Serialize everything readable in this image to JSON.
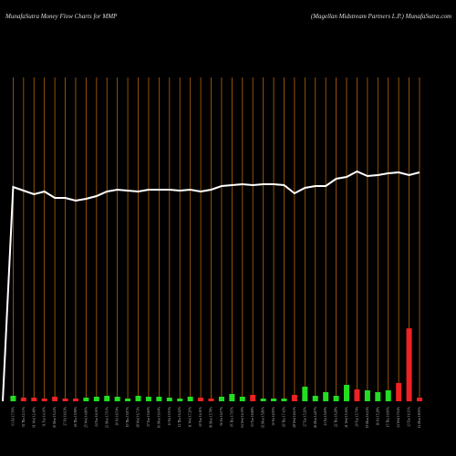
{
  "chart_data": {
    "type": "money-flow",
    "title": "MunafaSutra  Money Flow  Charts for MMP",
    "subtitle": "(Magellan Midstream Partners L.P.) MunafaSutra.com",
    "categories": [
      null,
      "03 Fri 17.59%",
      "02 Thu 12.33%",
      "01 Wed 12.48%",
      "31 Tue 14.30%",
      "30 Mon 15.41%",
      "27 Fri 16.02%",
      "26 Thu 15.98%",
      "25 Wed 14.80%",
      "24 Tue 16.30%",
      "23 Mon 17.03%",
      "20 Fri 16.54%",
      "19 Thu 15.87%",
      "18 Wed 16.71%",
      "17 Tue 15.60%",
      "16 Mon 16.04%",
      "13 Fri 15.93%",
      "12 Thu 16.42%",
      "11 Wed 17.20%",
      "10 Tue 16.10%",
      "09 Mon 15.78%",
      "06 Fri 16.07%",
      "05 Thu 17.65%",
      "04 Wed 16.39%",
      "03 Tue 16.88%",
      "02 Mon 15.86%",
      "30 Fri 16.95%",
      "29 Thu 17.42%",
      "28 Wed 16.63%",
      "27 Tue 15.20%",
      "26 Mon 14.87%",
      "23 Fri 15.69%",
      "22 Thu 16.28%",
      "21 Wed 15.36%",
      "20 Tue 15.74%",
      "19 Mon 16.41%",
      "16 Fri 15.28%",
      "15 Thu 16.66%",
      "14 Wed 17.04%",
      "13 Tue 16.13%",
      "12 Mon 18.00%"
    ],
    "line": {
      "name": "Money Flow",
      "color": "#ffffff",
      "values": [
        0,
        235,
        231,
        227,
        230,
        223,
        223,
        220,
        222,
        225,
        230,
        232,
        231,
        230,
        232,
        232,
        232,
        231,
        232,
        230,
        232,
        236,
        237,
        238,
        237,
        238,
        238,
        237,
        228,
        234,
        236,
        236,
        244,
        246,
        252,
        247,
        248,
        250,
        251,
        248,
        251
      ]
    },
    "bars": {
      "values": [
        null,
        6,
        4,
        4,
        3,
        5,
        3,
        3,
        4,
        5,
        6,
        5,
        3,
        6,
        5,
        5,
        4,
        3,
        5,
        4,
        3,
        5,
        8,
        5,
        7,
        3,
        3,
        3,
        7,
        16,
        6,
        10,
        6,
        18,
        13,
        12,
        10,
        12,
        20,
        80,
        4
      ],
      "colors": [
        null,
        "#22dd22",
        "#ee2222",
        "#ee2222",
        "#ee2222",
        "#ee2222",
        "#ee2222",
        "#ee2222",
        "#22dd22",
        "#22dd22",
        "#22dd22",
        "#22dd22",
        "#22dd22",
        "#22dd22",
        "#22dd22",
        "#22dd22",
        "#22dd22",
        "#22dd22",
        "#22dd22",
        "#ee2222",
        "#ee2222",
        "#22dd22",
        "#22dd22",
        "#22dd22",
        "#ee2222",
        "#22dd22",
        "#22dd22",
        "#22dd22",
        "#ee2222",
        "#22dd22",
        "#22dd22",
        "#22dd22",
        "#22dd22",
        "#22dd22",
        "#ee2222",
        "#22dd22",
        "#22dd22",
        "#22dd22",
        "#ee2222",
        "#ee2222",
        "#ee2222"
      ]
    },
    "ylim": [
      0,
      355
    ],
    "grid_color": "#b8650a"
  }
}
